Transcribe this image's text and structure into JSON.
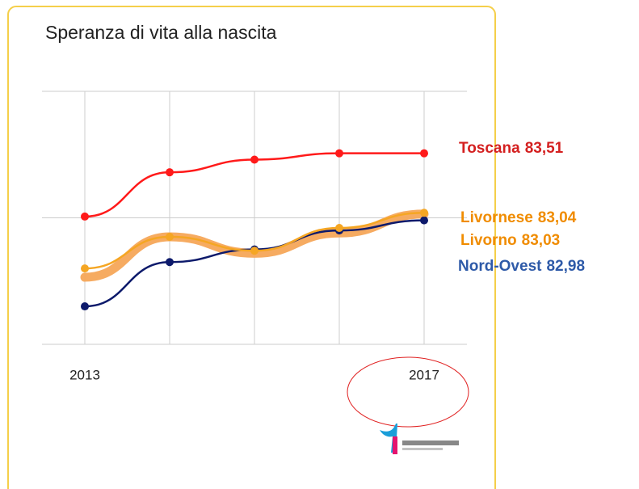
{
  "chart_data": {
    "type": "line",
    "title": "Speranza di vita alla nascita",
    "categories": [
      "2013",
      null,
      null,
      null,
      "2017"
    ],
    "ylim": [
      82,
      84
    ],
    "yticks": [
      82,
      83,
      84
    ],
    "grid": true,
    "series": [
      {
        "name": "Toscana",
        "color": "#ff1a1a",
        "label_color": "#d42020",
        "width": 2.5,
        "markers": true,
        "values": [
          83.01,
          83.36,
          83.46,
          83.51,
          83.51
        ],
        "value_labels": [
          null,
          null,
          null,
          null,
          "83,51"
        ]
      },
      {
        "name": "Livorno",
        "color": "#f5a658",
        "label_color": "#f08c00",
        "width": 11,
        "markers": false,
        "values": [
          82.53,
          82.85,
          82.72,
          82.88,
          83.03
        ],
        "value_labels": [
          null,
          null,
          null,
          null,
          "83,03"
        ]
      },
      {
        "name": "Nord-Ovest",
        "color": "#0d1a6b",
        "label_color": "#2e5aa8",
        "width": 2.5,
        "markers": true,
        "values": [
          82.3,
          82.65,
          82.75,
          82.9,
          82.98
        ],
        "value_labels": [
          null,
          null,
          null,
          null,
          "82,98"
        ]
      },
      {
        "name": "Livornese",
        "color": "#f5a623",
        "label_color": "#f08c00",
        "width": 2.5,
        "markers": true,
        "values": [
          82.6,
          82.85,
          82.74,
          82.92,
          83.04
        ],
        "value_labels": [
          null,
          null,
          null,
          null,
          "83,04"
        ]
      }
    ]
  }
}
